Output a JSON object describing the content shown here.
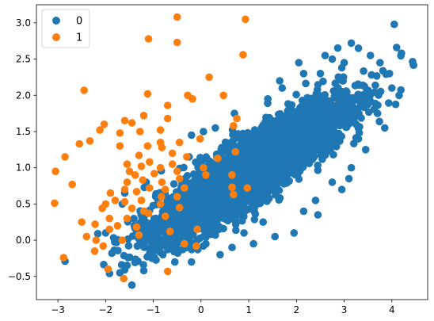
{
  "chart_data": {
    "type": "scatter",
    "xlim": [
      -3.45,
      4.75
    ],
    "ylim": [
      -0.82,
      3.25
    ],
    "x_ticks": [
      -3,
      -2,
      -1,
      0,
      1,
      2,
      3,
      4
    ],
    "y_ticks": [
      -0.5,
      0.0,
      0.5,
      1.0,
      1.5,
      2.0,
      2.5,
      3.0
    ],
    "x_tick_labels": [
      "−3",
      "−2",
      "−1",
      "0",
      "1",
      "2",
      "3",
      "4"
    ],
    "y_tick_labels": [
      "−0.5",
      "0.0",
      "0.5",
      "1.0",
      "1.5",
      "2.0",
      "2.5",
      "3.0"
    ],
    "grid": false,
    "legend": {
      "placement": "top-left"
    },
    "series": [
      {
        "name": "0",
        "color": "#1f77b4",
        "approx_count": 4800,
        "cloud_model": {
          "description_fields_are_estimates_of_dense_blue_cloud": true,
          "mean_x": 1.05,
          "mean_y": 0.98,
          "std_x": 0.95,
          "std_y": 0.45,
          "correlation": 0.88,
          "x_range": [
            -2.9,
            4.5
          ],
          "y_range": [
            -0.62,
            2.98
          ]
        },
        "points": [
          [
            -2.85,
            -0.29
          ],
          [
            -1.45,
            -0.62
          ],
          [
            -1.7,
            -0.45
          ],
          [
            -1.2,
            -0.42
          ],
          [
            -1.6,
            0.65
          ],
          [
            -1.65,
            0.5
          ],
          [
            -1.4,
            0.2
          ],
          [
            -2.0,
            0.1
          ],
          [
            -1.15,
            0.8
          ],
          [
            -0.9,
            0.55
          ],
          [
            -0.2,
            1.45
          ],
          [
            0.05,
            1.5
          ],
          [
            -0.25,
            1.15
          ],
          [
            0.3,
            1.55
          ],
          [
            0.7,
            1.75
          ],
          [
            1.4,
            1.95
          ],
          [
            1.7,
            2.1
          ],
          [
            1.65,
            2.2
          ],
          [
            2.05,
            2.45
          ],
          [
            2.15,
            2.3
          ],
          [
            2.5,
            2.3
          ],
          [
            2.6,
            2.55
          ],
          [
            2.75,
            2.5
          ],
          [
            2.95,
            2.38
          ],
          [
            3.0,
            2.45
          ],
          [
            3.15,
            2.72
          ],
          [
            3.3,
            2.65
          ],
          [
            3.55,
            2.55
          ],
          [
            3.75,
            2.45
          ],
          [
            3.95,
            2.3
          ],
          [
            4.05,
            2.98
          ],
          [
            4.1,
            2.66
          ],
          [
            4.2,
            2.58
          ],
          [
            4.45,
            2.42
          ],
          [
            4.0,
            2.1
          ],
          [
            4.15,
            2.0
          ],
          [
            3.7,
            1.75
          ],
          [
            3.85,
            1.55
          ],
          [
            3.45,
            1.25
          ],
          [
            3.3,
            1.4
          ],
          [
            3.1,
            0.85
          ],
          [
            3.15,
            1.0
          ],
          [
            2.95,
            0.7
          ],
          [
            2.75,
            0.8
          ],
          [
            2.4,
            0.55
          ],
          [
            2.45,
            0.35
          ],
          [
            2.15,
            0.4
          ],
          [
            1.95,
            0.1
          ],
          [
            1.55,
            0.05
          ],
          [
            1.3,
            0.25
          ],
          [
            1.1,
            -0.05
          ],
          [
            0.9,
            0.1
          ],
          [
            0.65,
            -0.1
          ],
          [
            0.4,
            -0.2
          ],
          [
            0.1,
            -0.05
          ],
          [
            -0.2,
            -0.3
          ],
          [
            -0.55,
            -0.3
          ],
          [
            -0.3,
            -0.1
          ],
          [
            -0.8,
            -0.2
          ],
          [
            -1.05,
            -0.1
          ]
        ]
      },
      {
        "name": "1",
        "color": "#ff7f0e",
        "points": [
          [
            -0.5,
            3.08
          ],
          [
            0.93,
            3.05
          ],
          [
            -1.1,
            2.78
          ],
          [
            -0.5,
            2.73
          ],
          [
            0.88,
            2.56
          ],
          [
            0.17,
            2.25
          ],
          [
            -2.45,
            2.07
          ],
          [
            -1.12,
            2.02
          ],
          [
            -0.28,
            2.0
          ],
          [
            -0.18,
            1.95
          ],
          [
            0.47,
            2.0
          ],
          [
            -0.7,
            1.86
          ],
          [
            -1.2,
            1.72
          ],
          [
            -0.7,
            1.68
          ],
          [
            0.75,
            1.68
          ],
          [
            -2.03,
            1.6
          ],
          [
            -1.6,
            1.65
          ],
          [
            -1.45,
            1.62
          ],
          [
            -2.12,
            1.52
          ],
          [
            -1.7,
            1.48
          ],
          [
            -1.28,
            1.5
          ],
          [
            -0.85,
            1.52
          ],
          [
            0.68,
            1.58
          ],
          [
            -2.55,
            1.33
          ],
          [
            -2.33,
            1.37
          ],
          [
            -1.7,
            1.3
          ],
          [
            -1.12,
            1.3
          ],
          [
            -0.85,
            1.35
          ],
          [
            -0.45,
            1.35
          ],
          [
            -0.02,
            1.4
          ],
          [
            -2.85,
            1.15
          ],
          [
            -1.3,
            1.17
          ],
          [
            -0.82,
            1.28
          ],
          [
            -0.6,
            1.2
          ],
          [
            0.72,
            1.22
          ],
          [
            -1.55,
            1.05
          ],
          [
            -1.25,
            1.02
          ],
          [
            -1.08,
            1.08
          ],
          [
            -0.85,
            1.0
          ],
          [
            -0.6,
            1.05
          ],
          [
            -0.3,
            1.15
          ],
          [
            0.35,
            1.13
          ],
          [
            -3.05,
            0.95
          ],
          [
            -1.5,
            0.95
          ],
          [
            -1.38,
            0.9
          ],
          [
            -0.98,
            0.92
          ],
          [
            -0.5,
            0.95
          ],
          [
            0.05,
            1.0
          ],
          [
            -2.7,
            0.77
          ],
          [
            -1.55,
            0.8
          ],
          [
            -1.22,
            0.83
          ],
          [
            -0.82,
            0.8
          ],
          [
            -0.45,
            0.85
          ],
          [
            0.1,
            0.9
          ],
          [
            0.65,
            0.9
          ],
          [
            -1.9,
            0.65
          ],
          [
            -1.6,
            0.7
          ],
          [
            -1.35,
            0.67
          ],
          [
            -1.08,
            0.72
          ],
          [
            -0.75,
            0.7
          ],
          [
            -0.35,
            0.72
          ],
          [
            0.65,
            0.73
          ],
          [
            0.97,
            0.72
          ],
          [
            -3.07,
            0.51
          ],
          [
            -2.0,
            0.5
          ],
          [
            -1.8,
            0.55
          ],
          [
            -1.6,
            0.53
          ],
          [
            -1.25,
            0.55
          ],
          [
            -0.83,
            0.6
          ],
          [
            -0.5,
            0.6
          ],
          [
            -2.07,
            0.44
          ],
          [
            -1.45,
            0.44
          ],
          [
            -1.2,
            0.4
          ],
          [
            -0.85,
            0.5
          ],
          [
            -0.45,
            0.45
          ],
          [
            0.68,
            0.63
          ],
          [
            -1.92,
            0.3
          ],
          [
            -1.55,
            0.3
          ],
          [
            -1.1,
            0.37
          ],
          [
            -0.75,
            0.33
          ],
          [
            -2.5,
            0.25
          ],
          [
            -2.22,
            0.22
          ],
          [
            -1.75,
            0.2
          ],
          [
            -1.35,
            0.18
          ],
          [
            -0.65,
            0.12
          ],
          [
            -2.4,
            0.05
          ],
          [
            -2.2,
            0.0
          ],
          [
            -1.92,
            0.15
          ],
          [
            -1.3,
            0.07
          ],
          [
            -2.23,
            -0.15
          ],
          [
            -2.05,
            -0.08
          ],
          [
            -1.65,
            0.0
          ],
          [
            -0.08,
            0.15
          ],
          [
            -2.88,
            -0.24
          ],
          [
            -0.35,
            -0.05
          ],
          [
            -1.95,
            -0.4
          ],
          [
            -1.62,
            -0.53
          ],
          [
            -0.7,
            -0.43
          ],
          [
            -0.1,
            -0.08
          ]
        ]
      }
    ]
  }
}
